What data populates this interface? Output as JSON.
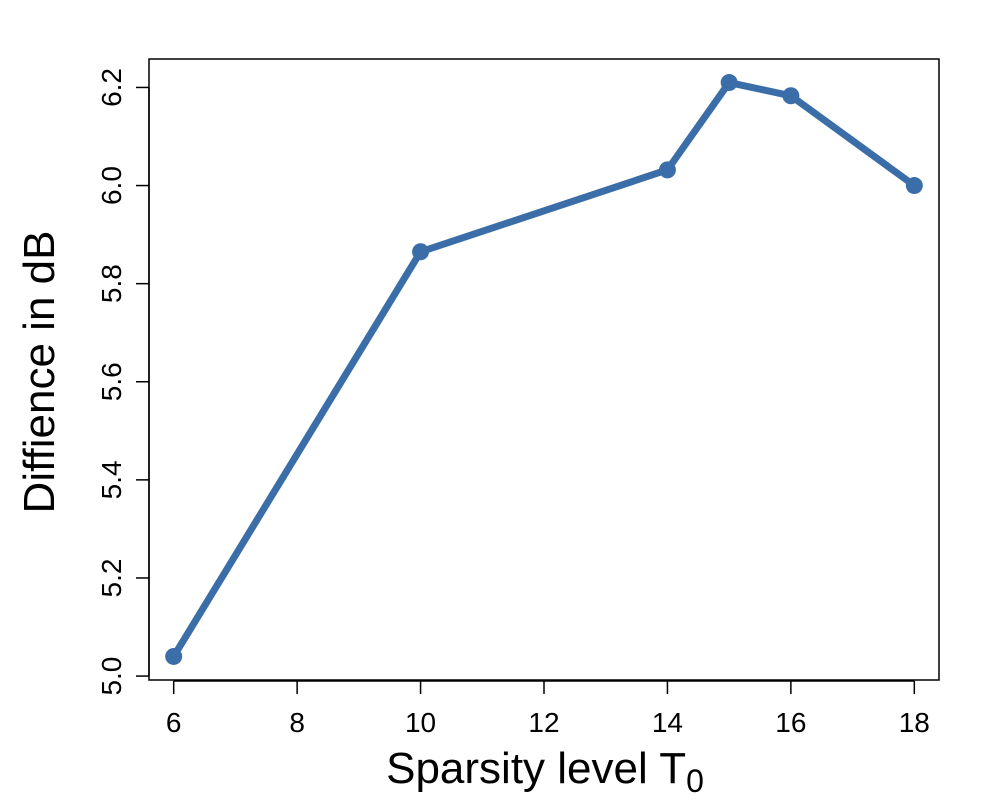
{
  "chart_data": {
    "type": "line",
    "title": "",
    "xlabel": "Sparsity level T",
    "xlabel_subscript": "0",
    "ylabel": "Diffience in dB",
    "x": [
      6,
      10,
      14,
      15,
      16,
      18
    ],
    "series": [
      {
        "values": [
          5.04,
          5.865,
          6.032,
          6.21,
          6.183,
          6.0
        ]
      }
    ],
    "xticks": [
      6,
      8,
      10,
      12,
      14,
      16,
      18
    ],
    "xtick_labels": [
      "6",
      "8",
      "10",
      "12",
      "14",
      "16",
      "18"
    ],
    "yticks": [
      5.0,
      5.2,
      5.4,
      5.6,
      5.8,
      6.0,
      6.2
    ],
    "ytick_labels": [
      "5.0",
      "5.2",
      "5.4",
      "5.6",
      "5.8",
      "6.0",
      "6.2"
    ],
    "xlim": [
      5.6,
      18.4
    ],
    "ylim": [
      4.992,
      6.258
    ],
    "grid": false,
    "legend": "none",
    "colors": {
      "line": "#3b6ea8",
      "axis": "#000000"
    }
  }
}
